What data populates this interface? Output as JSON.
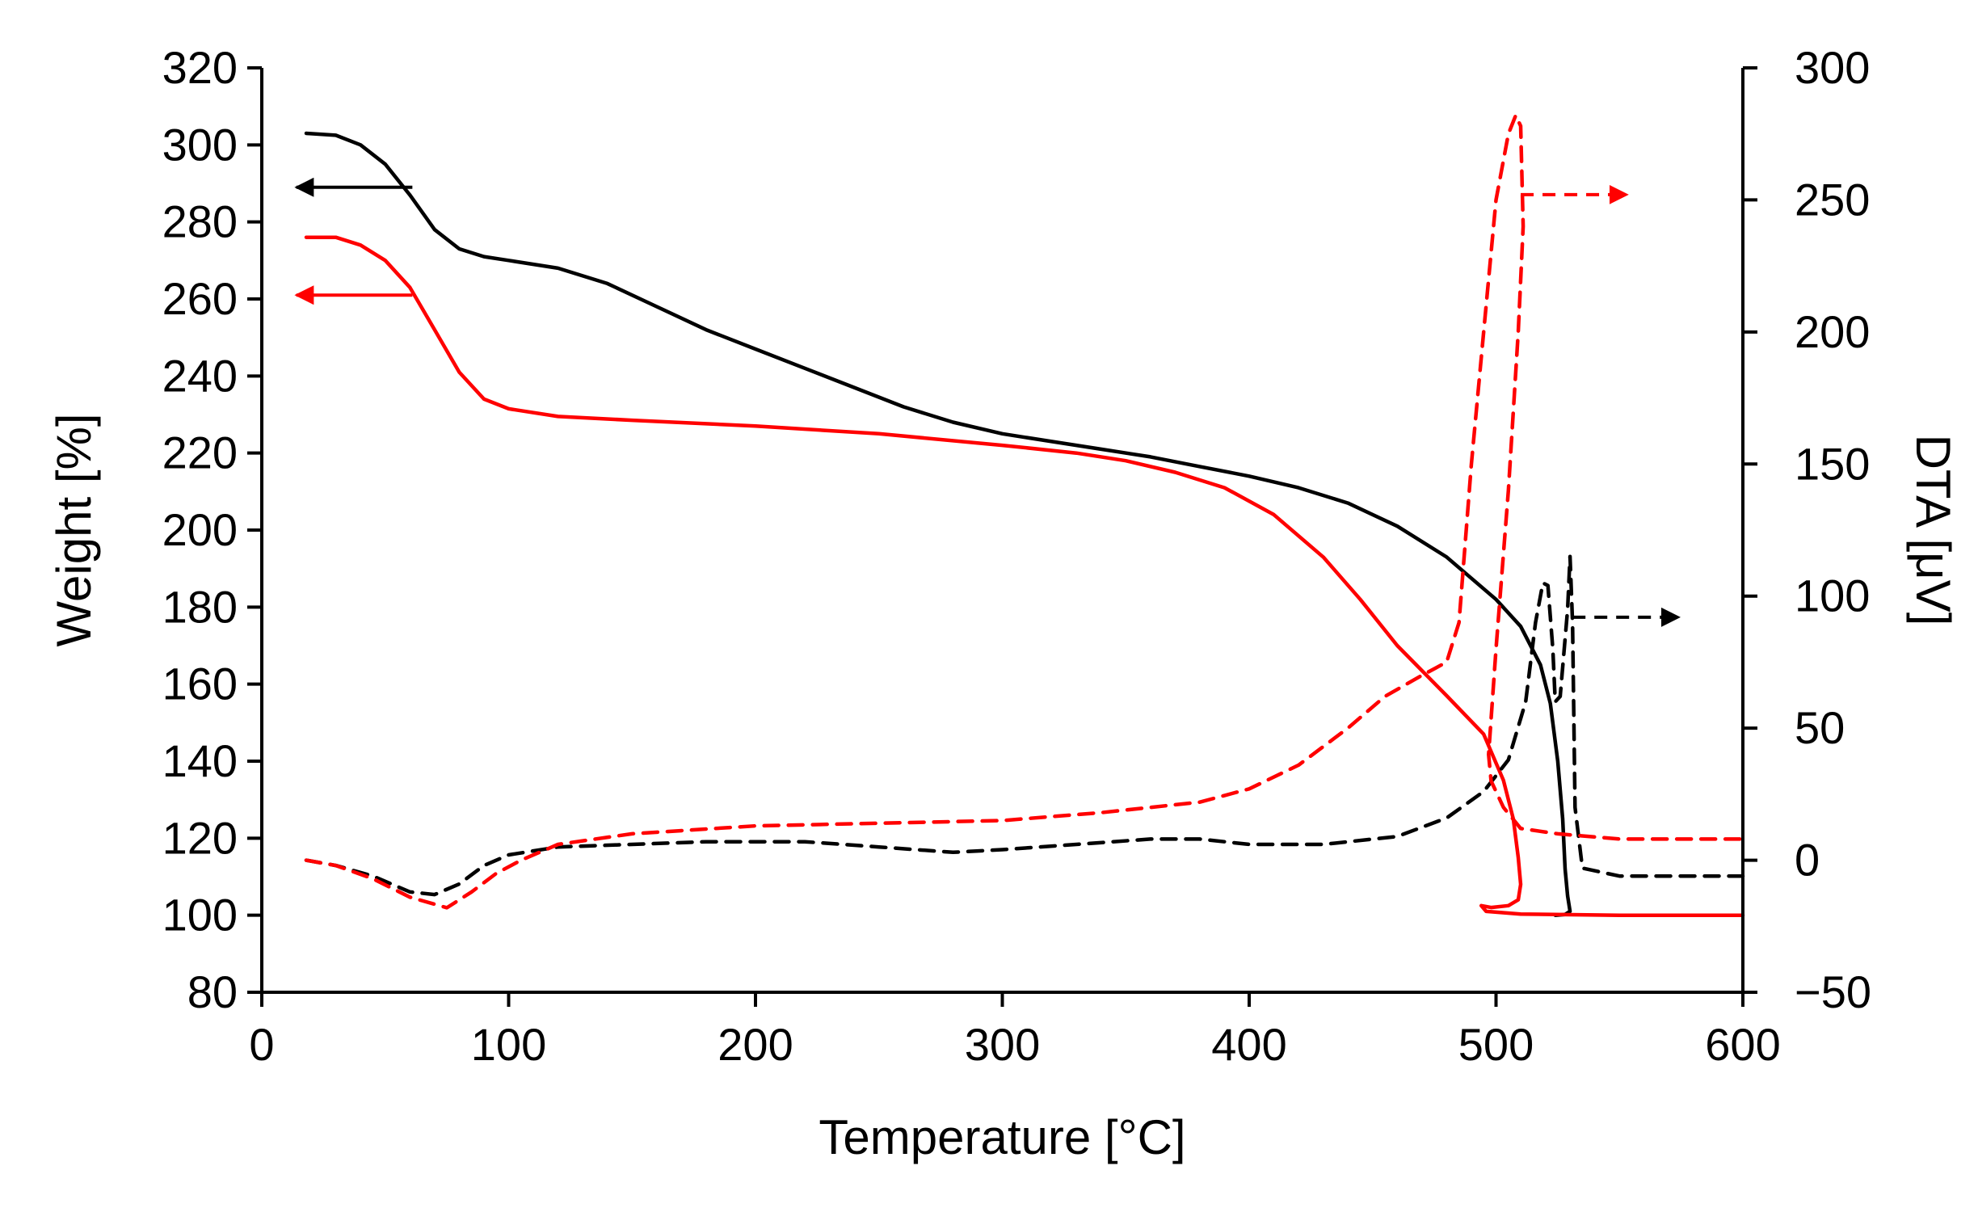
{
  "chart_data": {
    "type": "line",
    "title": "",
    "xlabel": "Temperature [°C]",
    "ylabel": "Weight [%]",
    "y2label": "DTA [μV]",
    "xlim": [
      0,
      600
    ],
    "ylim": [
      80,
      320
    ],
    "y2lim": [
      -50,
      300
    ],
    "xticks": [
      0,
      100,
      200,
      300,
      400,
      500,
      600
    ],
    "yticks": [
      80,
      100,
      120,
      140,
      160,
      180,
      200,
      220,
      240,
      260,
      280,
      300,
      320
    ],
    "y2ticks": [
      -50,
      0,
      50,
      100,
      150,
      200,
      250,
      300
    ],
    "y2tick_labels": [
      "−50",
      "0",
      "50",
      "100",
      "150",
      "200",
      "250",
      "300"
    ],
    "grid": false,
    "colors": {
      "black": "#000000",
      "red": "#ff0000"
    },
    "series": [
      {
        "name": "Weight (black)",
        "axis": "left",
        "color": "#000000",
        "dash": false,
        "points": [
          [
            18,
            303
          ],
          [
            30,
            302.5
          ],
          [
            40,
            300
          ],
          [
            50,
            295
          ],
          [
            60,
            287
          ],
          [
            70,
            278
          ],
          [
            80,
            273
          ],
          [
            90,
            271
          ],
          [
            100,
            270
          ],
          [
            120,
            268
          ],
          [
            140,
            264
          ],
          [
            160,
            258
          ],
          [
            180,
            252
          ],
          [
            200,
            247
          ],
          [
            220,
            242
          ],
          [
            240,
            237
          ],
          [
            260,
            232
          ],
          [
            280,
            228
          ],
          [
            300,
            225
          ],
          [
            320,
            223
          ],
          [
            340,
            221
          ],
          [
            360,
            219
          ],
          [
            380,
            216.5
          ],
          [
            400,
            214
          ],
          [
            420,
            211
          ],
          [
            440,
            207
          ],
          [
            460,
            201
          ],
          [
            480,
            193
          ],
          [
            500,
            182
          ],
          [
            510,
            175
          ],
          [
            518,
            165
          ],
          [
            522,
            155
          ],
          [
            525,
            140
          ],
          [
            527,
            125
          ],
          [
            528,
            112
          ],
          [
            529,
            105
          ],
          [
            530,
            101
          ],
          [
            528,
            100.2
          ],
          [
            524,
            100
          ]
        ]
      },
      {
        "name": "Weight (red)",
        "axis": "left",
        "color": "#ff0000",
        "dash": false,
        "points": [
          [
            18,
            276
          ],
          [
            30,
            276
          ],
          [
            40,
            274
          ],
          [
            50,
            270
          ],
          [
            60,
            263
          ],
          [
            70,
            252
          ],
          [
            80,
            241
          ],
          [
            90,
            234
          ],
          [
            100,
            231.5
          ],
          [
            120,
            229.5
          ],
          [
            150,
            228.5
          ],
          [
            200,
            227
          ],
          [
            250,
            225
          ],
          [
            300,
            222
          ],
          [
            330,
            220
          ],
          [
            350,
            218
          ],
          [
            370,
            215
          ],
          [
            390,
            211
          ],
          [
            410,
            204
          ],
          [
            430,
            193
          ],
          [
            445,
            182
          ],
          [
            460,
            170
          ],
          [
            480,
            157
          ],
          [
            495,
            147
          ],
          [
            503,
            135
          ],
          [
            507,
            125
          ],
          [
            509,
            115
          ],
          [
            510,
            108
          ],
          [
            509,
            104
          ],
          [
            505,
            102.5
          ],
          [
            498,
            102
          ],
          [
            494,
            102.5
          ],
          [
            496,
            101
          ],
          [
            510,
            100.3
          ],
          [
            550,
            100
          ],
          [
            600,
            100
          ]
        ]
      },
      {
        "name": "DTA (black)",
        "axis": "right",
        "color": "#000000",
        "dash": true,
        "points": [
          [
            18,
            0
          ],
          [
            30,
            -2
          ],
          [
            45,
            -6
          ],
          [
            60,
            -12
          ],
          [
            70,
            -13
          ],
          [
            80,
            -9
          ],
          [
            90,
            -2
          ],
          [
            100,
            2
          ],
          [
            120,
            5
          ],
          [
            150,
            6
          ],
          [
            180,
            7
          ],
          [
            220,
            7
          ],
          [
            250,
            5
          ],
          [
            280,
            3
          ],
          [
            300,
            4
          ],
          [
            330,
            6
          ],
          [
            360,
            8
          ],
          [
            380,
            8
          ],
          [
            400,
            6
          ],
          [
            430,
            6
          ],
          [
            460,
            9
          ],
          [
            480,
            16
          ],
          [
            495,
            26
          ],
          [
            505,
            38
          ],
          [
            512,
            60
          ],
          [
            516,
            90
          ],
          [
            519,
            105
          ],
          [
            521,
            104
          ],
          [
            523,
            80
          ],
          [
            524,
            60
          ],
          [
            526,
            62
          ],
          [
            529,
            95
          ],
          [
            530,
            115
          ],
          [
            531,
            90
          ],
          [
            532,
            20
          ],
          [
            535,
            -3
          ],
          [
            550,
            -6
          ],
          [
            600,
            -6
          ]
        ]
      },
      {
        "name": "DTA (red)",
        "axis": "right",
        "color": "#ff0000",
        "dash": true,
        "points": [
          [
            18,
            0
          ],
          [
            30,
            -2
          ],
          [
            45,
            -7
          ],
          [
            60,
            -14
          ],
          [
            75,
            -18
          ],
          [
            85,
            -12
          ],
          [
            95,
            -5
          ],
          [
            105,
            0
          ],
          [
            120,
            6
          ],
          [
            150,
            10
          ],
          [
            200,
            13
          ],
          [
            250,
            14
          ],
          [
            300,
            15
          ],
          [
            340,
            18
          ],
          [
            380,
            22
          ],
          [
            400,
            27
          ],
          [
            420,
            36
          ],
          [
            440,
            50
          ],
          [
            455,
            62
          ],
          [
            470,
            70
          ],
          [
            480,
            75
          ],
          [
            485,
            90
          ],
          [
            490,
            150
          ],
          [
            495,
            200
          ],
          [
            500,
            250
          ],
          [
            505,
            275
          ],
          [
            508,
            282
          ],
          [
            510,
            278
          ],
          [
            511,
            240
          ],
          [
            509,
            200
          ],
          [
            505,
            140
          ],
          [
            500,
            80
          ],
          [
            497,
            40
          ],
          [
            498,
            30
          ],
          [
            503,
            20
          ],
          [
            510,
            12
          ],
          [
            525,
            10
          ],
          [
            550,
            8
          ],
          [
            600,
            8
          ]
        ]
      }
    ],
    "annotations": [
      {
        "type": "arrow",
        "axis": "left",
        "color": "#000000",
        "dash": false,
        "from": [
          61,
          289
        ],
        "to": [
          14,
          289
        ]
      },
      {
        "type": "arrow",
        "axis": "left",
        "color": "#ff0000",
        "dash": false,
        "from": [
          61,
          261
        ],
        "to": [
          14,
          261
        ]
      },
      {
        "type": "arrow",
        "axis": "right",
        "color": "#ff0000",
        "dash": true,
        "from": [
          510,
          252
        ],
        "to": [
          553,
          252
        ]
      },
      {
        "type": "arrow",
        "axis": "right",
        "color": "#000000",
        "dash": true,
        "from": [
          531,
          92
        ],
        "to": [
          574,
          92
        ]
      }
    ]
  }
}
